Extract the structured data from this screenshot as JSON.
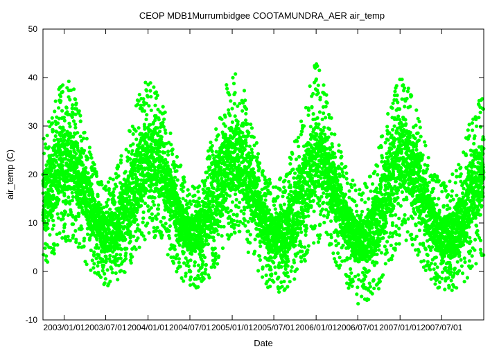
{
  "chart_data": {
    "type": "scatter",
    "title": "CEOP MDB1Murrumbidgee COOTAMUNDRA_AER  air_temp",
    "xlabel": "Date",
    "ylabel": "air_temp (C)",
    "ylim": [
      -10,
      50
    ],
    "xlim": [
      "2002-10-01",
      "2007-12-31"
    ],
    "x_ticks": [
      "2003/01/01",
      "2003/07/01",
      "2004/01/01",
      "2004/07/01",
      "2005/01/01",
      "2005/07/01",
      "2006/01/01",
      "2006/07/01",
      "2007/01/01",
      "2007/07/01"
    ],
    "y_ticks": [
      -10,
      0,
      10,
      20,
      30,
      40,
      50
    ],
    "series_color": "#00ff00",
    "grid": false,
    "envelope": {
      "x": [
        "2002-10-01",
        "2002-11-15",
        "2003-01-01",
        "2003-02-15",
        "2003-04-01",
        "2003-05-15",
        "2003-07-01",
        "2003-08-15",
        "2003-10-01",
        "2003-11-15",
        "2004-01-01",
        "2004-02-15",
        "2004-04-01",
        "2004-05-15",
        "2004-07-01",
        "2004-08-15",
        "2004-10-01",
        "2004-11-15",
        "2005-01-01",
        "2005-02-15",
        "2005-04-01",
        "2005-05-15",
        "2005-07-01",
        "2005-08-15",
        "2005-10-01",
        "2005-11-15",
        "2006-01-01",
        "2006-02-15",
        "2006-04-01",
        "2006-05-15",
        "2006-07-01",
        "2006-08-15",
        "2006-10-01",
        "2006-11-15",
        "2007-01-01",
        "2007-02-15",
        "2007-04-01",
        "2007-05-15",
        "2007-07-01",
        "2007-08-15",
        "2007-10-01",
        "2007-11-15",
        "2007-12-31"
      ],
      "max": [
        28,
        34,
        41,
        38,
        30,
        22,
        18,
        21,
        28,
        36,
        40,
        38,
        30,
        23,
        18,
        19,
        27,
        36,
        42,
        39,
        30,
        21,
        18,
        20,
        27,
        35,
        45,
        38,
        28,
        21,
        17,
        19,
        26,
        34,
        41,
        38,
        30,
        22,
        18,
        20,
        26,
        33,
        37
      ],
      "min": [
        -1,
        3,
        6,
        6,
        2,
        -1,
        -3,
        -3,
        0,
        4,
        7,
        7,
        3,
        -1,
        -4,
        -3,
        -1,
        3,
        7,
        6,
        2,
        -2,
        -5,
        -4,
        -2,
        2,
        6,
        5,
        1,
        -3,
        -7,
        -6,
        -4,
        1,
        6,
        6,
        2,
        -2,
        -5,
        -4,
        -3,
        0,
        3
      ],
      "mean_low": [
        8,
        12,
        17,
        16,
        11,
        7,
        4,
        4,
        7,
        12,
        17,
        16,
        12,
        7,
        4,
        4,
        7,
        12,
        17,
        16,
        11,
        6,
        3,
        3,
        6,
        11,
        17,
        15,
        10,
        5,
        2,
        2,
        5,
        11,
        17,
        16,
        11,
        6,
        3,
        3,
        5,
        10,
        14
      ],
      "mean_high": [
        20,
        26,
        30,
        28,
        22,
        15,
        11,
        13,
        19,
        26,
        30,
        29,
        22,
        15,
        11,
        12,
        19,
        26,
        31,
        29,
        22,
        14,
        11,
        12,
        18,
        25,
        32,
        28,
        20,
        14,
        10,
        12,
        18,
        25,
        31,
        29,
        22,
        15,
        11,
        12,
        17,
        24,
        28
      ]
    }
  }
}
